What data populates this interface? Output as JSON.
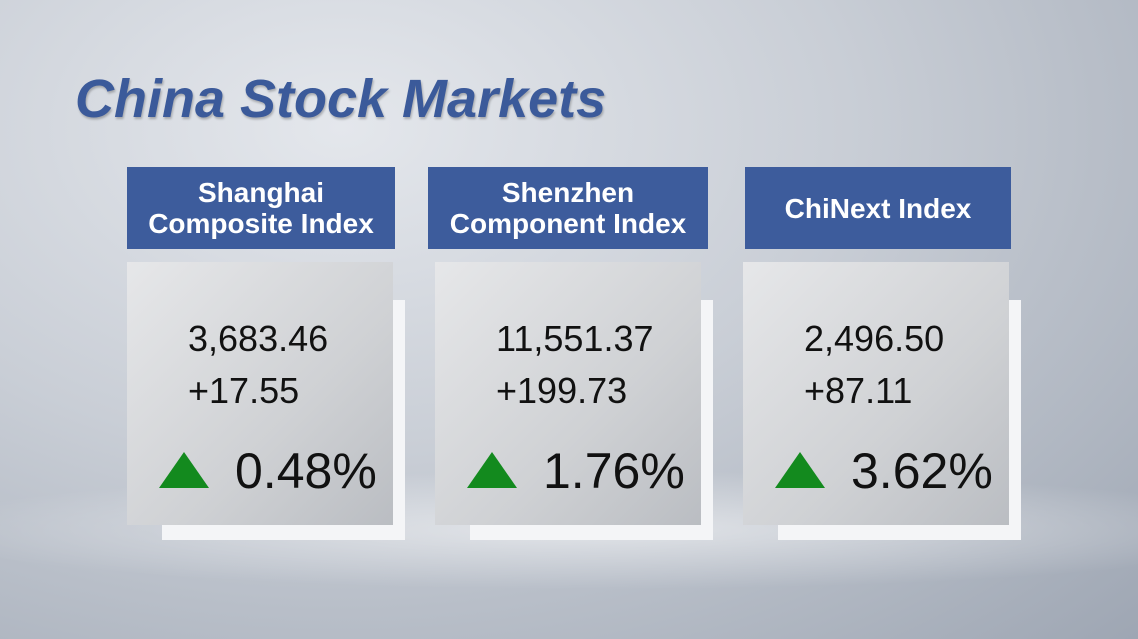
{
  "title": "China Stock Markets",
  "cards": [
    {
      "name_lines": [
        "Shanghai",
        "Composite Index"
      ],
      "value": "3,683.46",
      "change": "+17.55",
      "percent": "0.48%"
    },
    {
      "name_lines": [
        "Shenzhen",
        "Component Index"
      ],
      "value": "11,551.37",
      "change": "+199.73",
      "percent": "1.76%"
    },
    {
      "name_lines": [
        "ChiNext Index"
      ],
      "value": "2,496.50",
      "change": "+87.11",
      "percent": "3.62%"
    }
  ]
}
